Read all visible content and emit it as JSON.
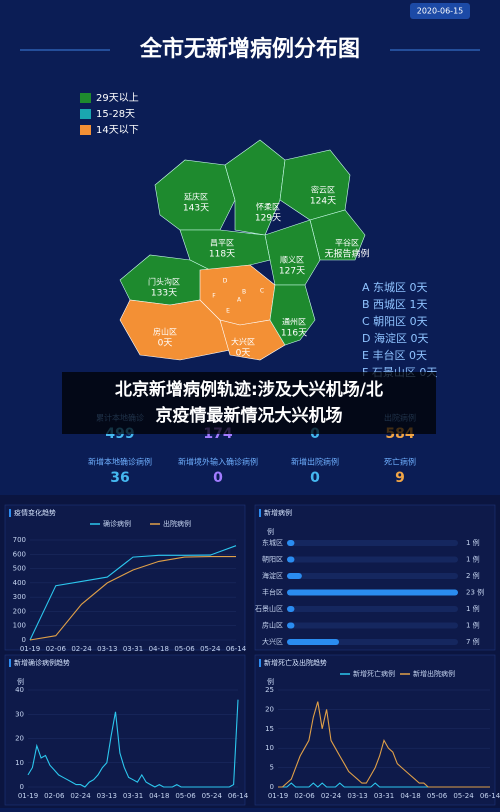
{
  "header": {
    "date": "2020-06-15",
    "title": "全市无新增病例分布图"
  },
  "legend": [
    {
      "label": "29天以上",
      "color": "#1e8a2e"
    },
    {
      "label": "15-28天",
      "color": "#1aa6b0"
    },
    {
      "label": "14天以下",
      "color": "#f39035"
    }
  ],
  "map_labels": [
    {
      "name": "延庆区",
      "days": "143天"
    },
    {
      "name": "怀柔区",
      "days": "129天"
    },
    {
      "name": "密云区",
      "days": "124天"
    },
    {
      "name": "昌平区",
      "days": "118天"
    },
    {
      "name": "平谷区",
      "days": "无报告病例"
    },
    {
      "name": "顺义区",
      "days": "127天"
    },
    {
      "name": "门头沟区",
      "days": "133天"
    },
    {
      "name": "通州区",
      "days": "116天"
    },
    {
      "name": "房山区",
      "days": "0天"
    },
    {
      "name": "大兴区",
      "days": "0天"
    }
  ],
  "inner_letters": [
    "A",
    "B",
    "C",
    "D",
    "E",
    "F"
  ],
  "district_list": [
    "A 东城区 0天",
    "B 西城区 1天",
    "C 朝阳区 0天",
    "D 海淀区 0天",
    "E 丰台区 0天",
    "F 石景山区 0天"
  ],
  "caption": [
    "北京新增病例轨迹:涉及大兴机场/北",
    "京疫情最新情况大兴机场"
  ],
  "stats": [
    {
      "label": "累计本地确诊",
      "value": 499,
      "color": "#45b8f0"
    },
    {
      "label": null,
      "value": 174,
      "color": "#a27cff"
    },
    {
      "label": null,
      "value": 0,
      "color": "#45b8f0"
    },
    {
      "label": "出院病例",
      "value": 584,
      "color": "#f2a646"
    },
    {
      "label": "新增本地确诊病例",
      "value": 36,
      "color": "#45b8f0"
    },
    {
      "label": "新增境外输入确诊病例",
      "value": 0,
      "color": "#a27cff"
    },
    {
      "label": "新增出院病例",
      "value": 0,
      "color": "#45b8f0"
    },
    {
      "label": "死亡病例",
      "value": 9,
      "color": "#f2a646"
    }
  ],
  "charts": [
    {
      "type": "line",
      "title": "疫情变化趋势",
      "categories": [
        "01-19",
        "02-06",
        "02-24",
        "03-13",
        "03-31",
        "04-18",
        "05-06",
        "05-24",
        "06-14"
      ],
      "series": [
        {
          "name": "确诊病例",
          "color": "#2cc7ee",
          "values": [
            0,
            380,
            410,
            440,
            580,
            593,
            593,
            594,
            660
          ]
        },
        {
          "name": "出院病例",
          "color": "#e0a048",
          "values": [
            0,
            30,
            250,
            400,
            490,
            550,
            580,
            584,
            584
          ]
        }
      ],
      "ylim": [
        0,
        700
      ],
      "yticks": [
        0,
        100,
        200,
        300,
        400,
        500,
        600,
        700
      ]
    },
    {
      "type": "hbar",
      "title": "新增病例",
      "axis_label": "例",
      "color": "#2a8cf0",
      "categories": [
        "东城区",
        "朝阳区",
        "海淀区",
        "丰台区",
        "石景山区",
        "房山区",
        "大兴区"
      ],
      "values": [
        1,
        1,
        2,
        23,
        1,
        1,
        7
      ],
      "value_labels": [
        "1 例",
        "1 例",
        "2 例",
        "23 例",
        "1 例",
        "1 例",
        "7 例"
      ],
      "xlim": [
        0,
        23
      ]
    },
    {
      "type": "line",
      "title": "新增确诊病例趋势",
      "axis_label": "例",
      "categories": [
        "01-19",
        null,
        null,
        null,
        null,
        null,
        "02-06",
        null,
        null,
        null,
        null,
        null,
        "02-24",
        null,
        null,
        null,
        null,
        null,
        "03-13",
        null,
        null,
        null,
        null,
        null,
        "03-31",
        null,
        null,
        null,
        null,
        null,
        "04-18",
        null,
        null,
        null,
        null,
        null,
        "05-06",
        null,
        null,
        null,
        null,
        null,
        "05-24",
        null,
        null,
        null,
        null,
        null,
        "06-14"
      ],
      "series": [
        {
          "name": null,
          "color": "#2cc7ee",
          "values": [
            5,
            8,
            17,
            12,
            13,
            9,
            7,
            5,
            4,
            3,
            2,
            1,
            1,
            0,
            2,
            3,
            5,
            8,
            10,
            21,
            31,
            14,
            8,
            4,
            3,
            2,
            5,
            2,
            1,
            0,
            1,
            0,
            0,
            0,
            1,
            0,
            0,
            0,
            0,
            0,
            0,
            0,
            0,
            0,
            0,
            0,
            0,
            1,
            36
          ]
        }
      ],
      "ylim": [
        0,
        40
      ],
      "yticks": [
        0,
        10,
        20,
        30,
        40
      ]
    },
    {
      "type": "line",
      "title": "新增死亡及出院趋势",
      "axis_label": "例",
      "categories": [
        "01-19",
        null,
        null,
        null,
        null,
        null,
        "02-06",
        null,
        null,
        null,
        null,
        null,
        "02-24",
        null,
        null,
        null,
        null,
        null,
        "03-13",
        null,
        null,
        null,
        null,
        null,
        "03-31",
        null,
        null,
        null,
        null,
        null,
        "04-18",
        null,
        null,
        null,
        null,
        null,
        "05-06",
        null,
        null,
        null,
        null,
        null,
        "05-24",
        null,
        null,
        null,
        null,
        null,
        "06-14"
      ],
      "series": [
        {
          "name": "新增死亡病例",
          "color": "#2cc7ee",
          "values": [
            0,
            0,
            0,
            1,
            0,
            0,
            0,
            0,
            1,
            0,
            1,
            0,
            0,
            0,
            1,
            0,
            0,
            0,
            0,
            0,
            0,
            0,
            1,
            0,
            0,
            0,
            0,
            0,
            0,
            0,
            0,
            0,
            0,
            0,
            0,
            0,
            0,
            0,
            0,
            0,
            0,
            0,
            0,
            0,
            0,
            0,
            0,
            0,
            0
          ]
        },
        {
          "name": "新增出院病例",
          "color": "#e0a048",
          "values": [
            0,
            0,
            1,
            2,
            5,
            8,
            10,
            12,
            18,
            22,
            15,
            20,
            12,
            10,
            8,
            6,
            4,
            3,
            2,
            1,
            1,
            3,
            5,
            8,
            12,
            10,
            9,
            6,
            5,
            4,
            3,
            2,
            1,
            1,
            0,
            0,
            0,
            0,
            0,
            0,
            0,
            0,
            0,
            0,
            0,
            0,
            0,
            0,
            0
          ]
        }
      ],
      "ylim": [
        0,
        25
      ],
      "yticks": [
        0,
        5,
        10,
        15,
        20,
        25
      ]
    }
  ]
}
